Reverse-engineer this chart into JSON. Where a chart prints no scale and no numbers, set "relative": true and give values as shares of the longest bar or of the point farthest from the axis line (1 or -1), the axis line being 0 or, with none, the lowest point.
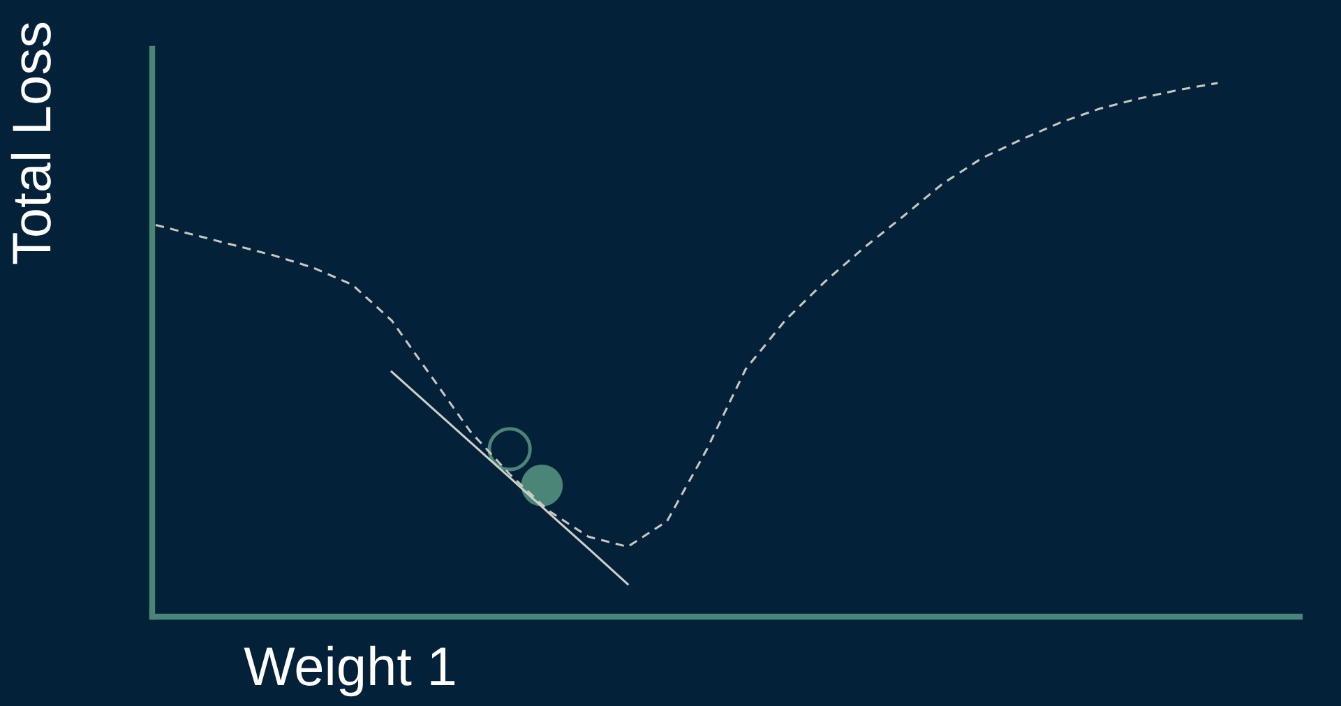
{
  "chart_data": {
    "type": "line",
    "relative": true,
    "xlabel": "Weight 1",
    "ylabel": "Total Loss",
    "categories": [
      null,
      null,
      null,
      null,
      null,
      null,
      null,
      null,
      null,
      null,
      null,
      null,
      null,
      null,
      null,
      null,
      null,
      null,
      null,
      null,
      null,
      null,
      null,
      null,
      null,
      null,
      null,
      null
    ],
    "series": [
      {
        "color": "#c8c8c0",
        "line_style": "dashed",
        "values": [
          0.734,
          0.715,
          0.696,
          0.677,
          0.654,
          0.622,
          0.555,
          0.451,
          0.347,
          0.267,
          0.198,
          0.15,
          0.131,
          0.179,
          0.312,
          0.464,
          0.555,
          0.627,
          0.691,
          0.75,
          0.811,
          0.859,
          0.894,
          0.926,
          0.952,
          0.971,
          0.987,
          1.0
        ]
      },
      {
        "color": "#d0d0c8",
        "line_style": "solid",
        "values": [
          null,
          null,
          null,
          null,
          null,
          null,
          0.459,
          0.393,
          0.327,
          0.261,
          0.194,
          0.128,
          0.061,
          null,
          null,
          null,
          null,
          null,
          null,
          null,
          null,
          null,
          null,
          null,
          null,
          null,
          null,
          null
        ]
      }
    ],
    "legend": false
  }
}
